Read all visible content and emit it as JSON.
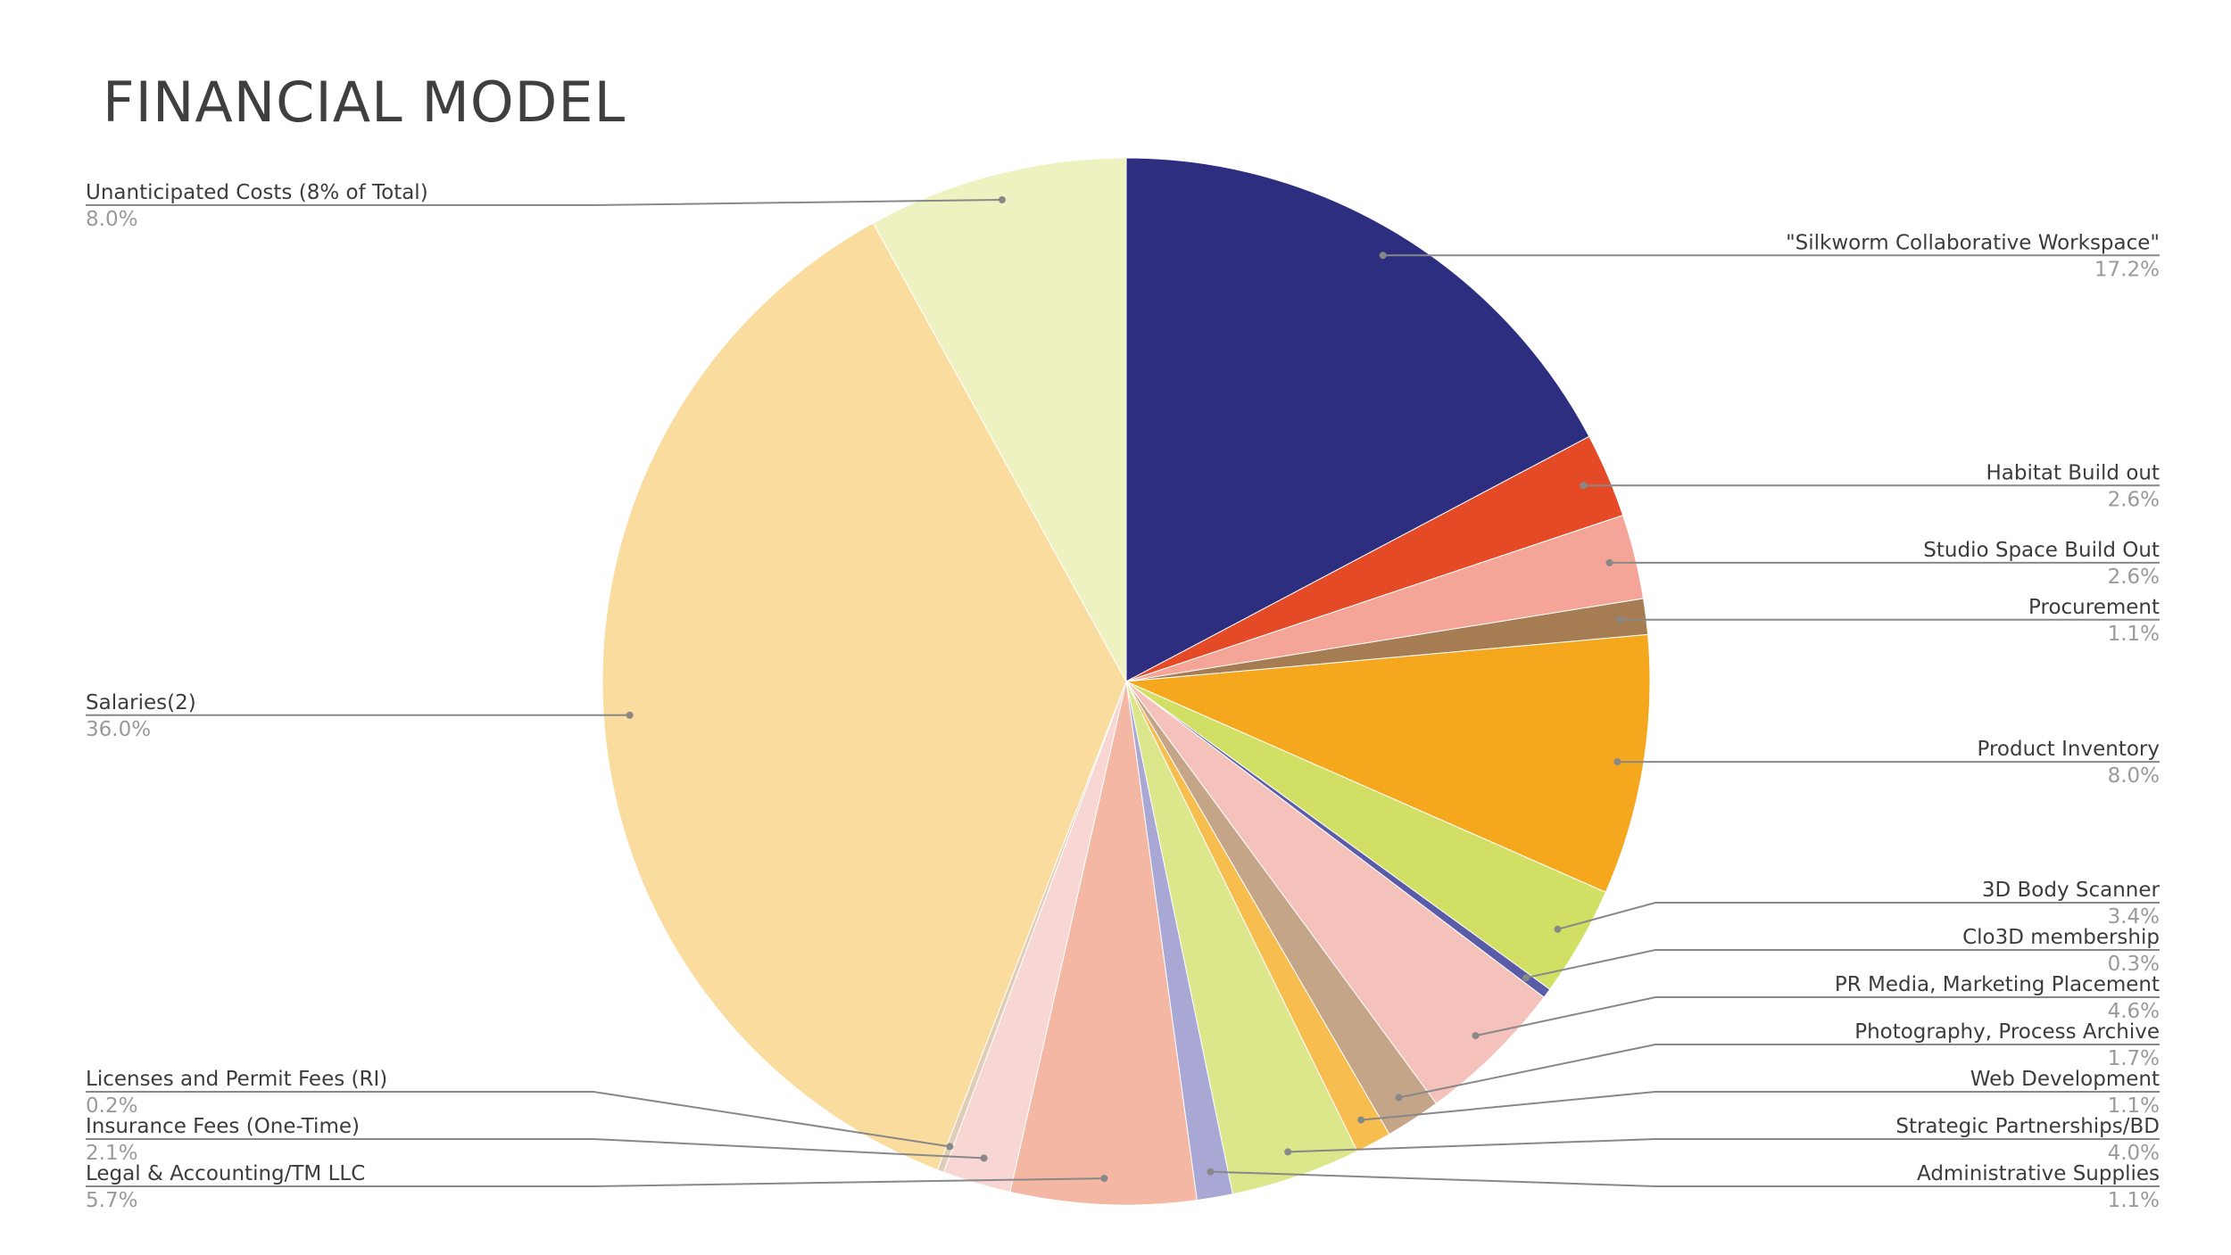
{
  "title": "FINANCIAL MODEL",
  "chart_data": {
    "type": "pie",
    "title": "FINANCIAL MODEL",
    "start_angle_deg": 0,
    "direction": "clockwise",
    "slices": [
      {
        "label": "\"Silkworm Collaborative Workspace\"",
        "percent_label": "17.2%",
        "value": 17.2,
        "color": "#2d2e80",
        "side": "right"
      },
      {
        "label": "Habitat Build out",
        "percent_label": "2.6%",
        "value": 2.6,
        "color": "#e44a25",
        "side": "right"
      },
      {
        "label": "Studio Space Build Out",
        "percent_label": "2.6%",
        "value": 2.6,
        "color": "#f5a597",
        "side": "right"
      },
      {
        "label": "Procurement",
        "percent_label": "1.1%",
        "value": 1.1,
        "color": "#a67c52",
        "side": "right"
      },
      {
        "label": "Product Inventory",
        "percent_label": "8.0%",
        "value": 8.0,
        "color": "#f5a81e",
        "side": "right"
      },
      {
        "label": "3D Body Scanner",
        "percent_label": "3.4%",
        "value": 3.4,
        "color": "#d1e064",
        "side": "right"
      },
      {
        "label": "Clo3D membership",
        "percent_label": "0.3%",
        "value": 0.3,
        "color": "#5b5ca8",
        "side": "right"
      },
      {
        "label": "PR Media, Marketing Placement",
        "percent_label": "4.6%",
        "value": 4.6,
        "color": "#f5c2bb",
        "side": "right"
      },
      {
        "label": "Photography, Process Archive",
        "percent_label": "1.7%",
        "value": 1.7,
        "color": "#c4a587",
        "side": "right"
      },
      {
        "label": "Web Development",
        "percent_label": "1.1%",
        "value": 1.1,
        "color": "#f7be4f",
        "side": "right"
      },
      {
        "label": "Strategic Partnerships/BD",
        "percent_label": "4.0%",
        "value": 4.0,
        "color": "#dce68a",
        "side": "right"
      },
      {
        "label": "Administrative Supplies",
        "percent_label": "1.1%",
        "value": 1.1,
        "color": "#a9a8d4",
        "side": "right"
      },
      {
        "label": "Legal & Accounting/TM LLC",
        "percent_label": "5.7%",
        "value": 5.7,
        "color": "#f4b7a3",
        "side": "left"
      },
      {
        "label": "Insurance Fees (One-Time)",
        "percent_label": "2.1%",
        "value": 2.1,
        "color": "#f8d6d3",
        "side": "left"
      },
      {
        "label": "Licenses and Permit Fees (RI)",
        "percent_label": "0.2%",
        "value": 0.2,
        "color": "#e0cdb6",
        "side": "left"
      },
      {
        "label": "Salaries(2)",
        "percent_label": "36.0%",
        "value": 36.0,
        "color": "#f9dc9e",
        "side": "left"
      },
      {
        "label": "Unanticipated Costs (8% of Total)",
        "percent_label": "8.0%",
        "value": 8.0,
        "color": "#eef2c1",
        "side": "left"
      }
    ]
  }
}
